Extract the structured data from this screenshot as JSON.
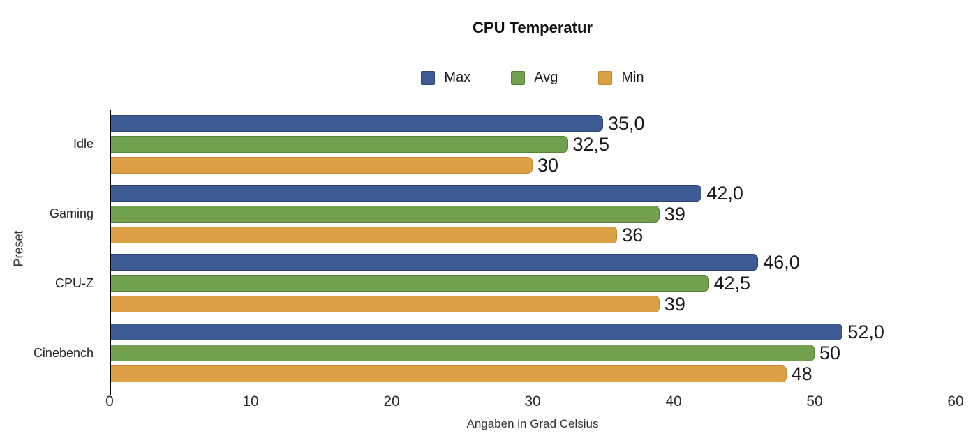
{
  "chart_data": {
    "type": "bar",
    "orientation": "horizontal",
    "title": "CPU Temperatur",
    "xlabel": "Angaben in Grad Celsius",
    "ylabel": "Preset",
    "categories": [
      "Idle",
      "Gaming",
      "CPU-Z",
      "Cinebench"
    ],
    "series": [
      {
        "name": "Max",
        "color": "#3e5a95",
        "border_color": "#2b4573",
        "values": [
          35.0,
          42.0,
          46.0,
          52.0
        ],
        "value_labels": [
          "35,0",
          "42,0",
          "46,0",
          "52,0"
        ]
      },
      {
        "name": "Avg",
        "color": "#71a04f",
        "border_color": "#578538",
        "values": [
          32.5,
          39,
          42.5,
          50
        ],
        "value_labels": [
          "32,5",
          "39",
          "42,5",
          "50"
        ]
      },
      {
        "name": "Min",
        "color": "#dca045",
        "border_color": "#c38a2f",
        "values": [
          30,
          36,
          39,
          48
        ],
        "value_labels": [
          "30",
          "36",
          "39",
          "48"
        ]
      }
    ],
    "xlim": [
      0,
      60
    ],
    "xticks": [
      0,
      10,
      20,
      30,
      40,
      50,
      60
    ],
    "grid": true,
    "legend_position": "top"
  }
}
